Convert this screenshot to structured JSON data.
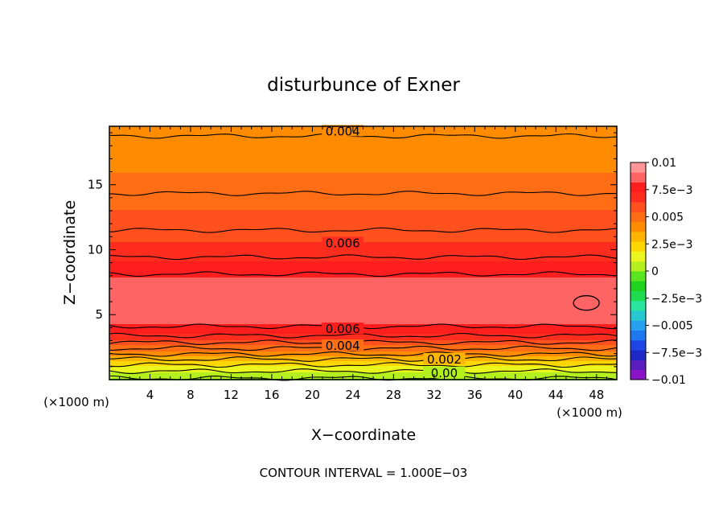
{
  "chart_data": {
    "type": "heatmap",
    "title": "disturbunce of Exner",
    "xlabel": "X−coordinate",
    "ylabel": "Z−coordinate",
    "x_unit": "(×1000 m)",
    "z_unit": "(×1000 m)",
    "xlim": [
      0,
      50
    ],
    "ylim": [
      0,
      19.5
    ],
    "xticks": [
      4,
      8,
      12,
      16,
      20,
      24,
      28,
      32,
      36,
      40,
      44,
      48
    ],
    "yticks": [
      5,
      10,
      15
    ],
    "footer": "CONTOUR INTERVAL = 1.000E−03",
    "contour_interval": 0.001,
    "colorbar": {
      "min": -0.01,
      "max": 0.01,
      "tick_values": [
        0.01,
        0.0075,
        0.005,
        0.0025,
        0,
        -0.0025,
        -0.005,
        -0.0075,
        -0.01
      ],
      "tick_labels": [
        "0.01",
        "7.5e−3",
        "0.005",
        "2.5e−3",
        "0",
        "−2.5e−3",
        "−0.005",
        "−7.5e−3",
        "−0.01"
      ],
      "colors": [
        "#8c14c8",
        "#5a1ebe",
        "#1e28c8",
        "#1e46e6",
        "#1e78f0",
        "#28a0f0",
        "#28c8d2",
        "#28e6a0",
        "#1edc50",
        "#1ed21e",
        "#5ae61e",
        "#b4f01e",
        "#ebf51e",
        "#ffd700",
        "#ffb400",
        "#ff8c00",
        "#ff6e14",
        "#ff501e",
        "#ff2d1e",
        "#ff1e1e",
        "#ff6464",
        "#ff9696"
      ]
    },
    "field_profile": {
      "z": [
        0,
        0.5,
        1,
        1.5,
        2,
        2.5,
        3,
        3.5,
        4,
        4.5,
        5,
        6,
        7,
        8,
        9,
        10,
        11,
        12,
        13,
        14,
        15,
        16,
        17,
        18,
        19.5
      ],
      "value": [
        -0.0002,
        0.0007,
        0.0017,
        0.0028,
        0.0041,
        0.0052,
        0.0063,
        0.0072,
        0.0079,
        0.0084,
        0.0086,
        0.0088,
        0.0086,
        0.0081,
        0.0073,
        0.0066,
        0.0062,
        0.0058,
        0.0055,
        0.0051,
        0.0048,
        0.0045,
        0.0043,
        0.0041,
        0.0039
      ]
    },
    "contour_labels": [
      {
        "text": "0.004",
        "x": 23,
        "z": 19.1
      },
      {
        "text": "0.006",
        "x": 23,
        "z": 10.5
      },
      {
        "text": "0.006",
        "x": 23,
        "z": 3.9
      },
      {
        "text": "0.004",
        "x": 23,
        "z": 2.6
      },
      {
        "text": "0.002",
        "x": 33,
        "z": 1.55
      },
      {
        "text": "0.00",
        "x": 33,
        "z": 0.5
      }
    ],
    "closed_contour": {
      "x": 47,
      "z": 5.9
    }
  }
}
